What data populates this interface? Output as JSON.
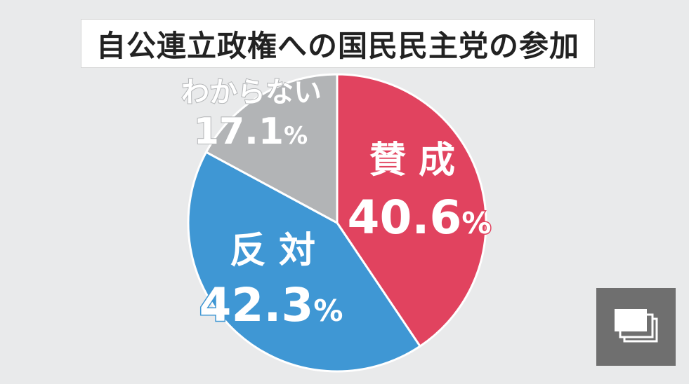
{
  "chart_data": {
    "type": "pie",
    "title": "自公連立政権への国民民主党の参加",
    "start_angle_deg": 0,
    "direction": "clockwise",
    "slices": [
      {
        "label": "賛 成",
        "value": 40.6,
        "value_text": "40.6",
        "unit": "%",
        "color": "#e1435f",
        "label_color": "#ffffff"
      },
      {
        "label": "反 対",
        "value": 42.3,
        "value_text": "42.3",
        "unit": "%",
        "color": "#3f97d4",
        "label_color": "#ffffff"
      },
      {
        "label": "わからない",
        "value": 17.1,
        "value_text": "17.1",
        "unit": "%",
        "color": "#b2b4b6",
        "label_color": "#ffffff"
      }
    ]
  },
  "overlay": {
    "icon": "image-gallery-icon",
    "background": "#6f6f6f"
  },
  "colors": {
    "background": "#e9eaeb",
    "divider": "#ffffff"
  }
}
